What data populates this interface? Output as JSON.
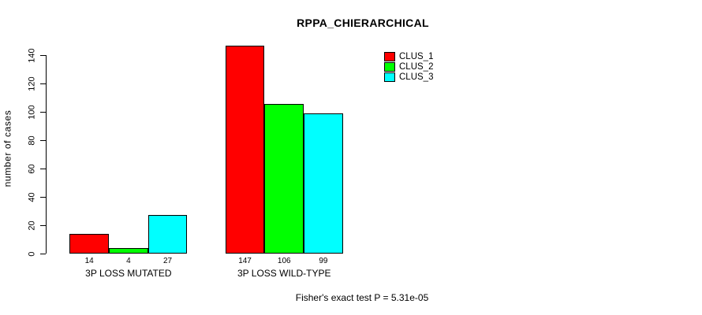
{
  "chart_data": {
    "type": "bar",
    "title": "RPPA_CHIERARCHICAL",
    "xlabel": "",
    "ylabel": "number of cases",
    "ylim": [
      0,
      140
    ],
    "yticks": [
      0,
      20,
      40,
      60,
      80,
      100,
      120,
      140
    ],
    "grid": false,
    "legend_position": "top-right",
    "categories": [
      "3P LOSS MUTATED",
      "3P LOSS WILD-TYPE"
    ],
    "series": [
      {
        "name": "CLUS_1",
        "color": "#ff0000",
        "values": [
          14,
          147
        ]
      },
      {
        "name": "CLUS_2",
        "color": "#00ff00",
        "values": [
          4,
          106
        ]
      },
      {
        "name": "CLUS_3",
        "color": "#00ffff",
        "values": [
          27,
          99
        ]
      }
    ],
    "bar_value_labels": [
      [
        "14",
        "4",
        "27"
      ],
      [
        "147",
        "106",
        "99"
      ]
    ],
    "annotation": "Fisher's exact test P = 5.31e-05"
  },
  "colors": {
    "background": "#ffffff",
    "axis": "#000000",
    "text": "#000000"
  }
}
